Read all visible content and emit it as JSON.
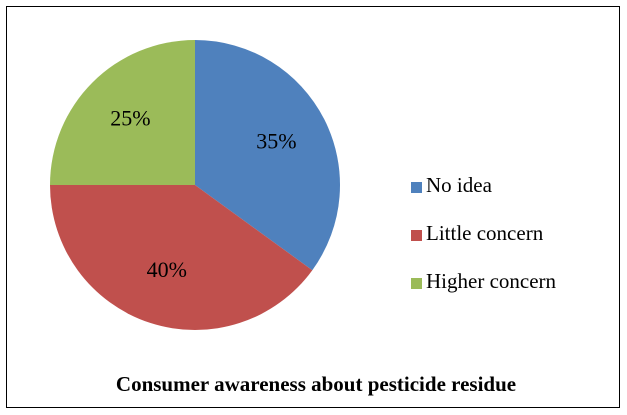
{
  "chart_data": {
    "type": "pie",
    "title": "Consumer awareness about pesticide residue",
    "categories": [
      "No idea",
      "Little concern",
      "Higher concern"
    ],
    "values": [
      35,
      40,
      25
    ],
    "value_labels": [
      "35%",
      "40%",
      "25%"
    ],
    "colors": [
      "#4f81bd",
      "#c0504d",
      "#9bbb59"
    ],
    "legend": "right"
  }
}
